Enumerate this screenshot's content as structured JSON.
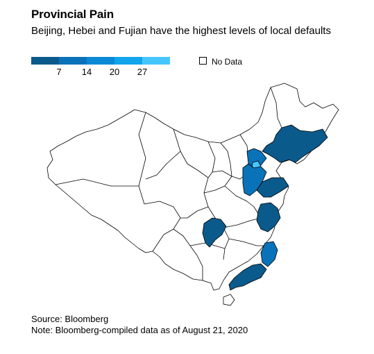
{
  "title": "Provincial Pain",
  "subtitle": "Beijing, Hebei and Fujian have the highest levels of local defaults",
  "legend": {
    "ticks": [
      "7",
      "14",
      "20",
      "27"
    ],
    "colors": [
      "#0b5a8c",
      "#0a72b8",
      "#0a8ad6",
      "#12a4ec",
      "#45c6ff"
    ],
    "no_data_label": "No Data"
  },
  "map_colors": {
    "border": "#000000",
    "empty_fill": "#ffffff"
  },
  "footer": {
    "source": "Source: Bloomberg",
    "note": "Note: Bloomberg-compiled data as of August 21, 2020"
  }
}
